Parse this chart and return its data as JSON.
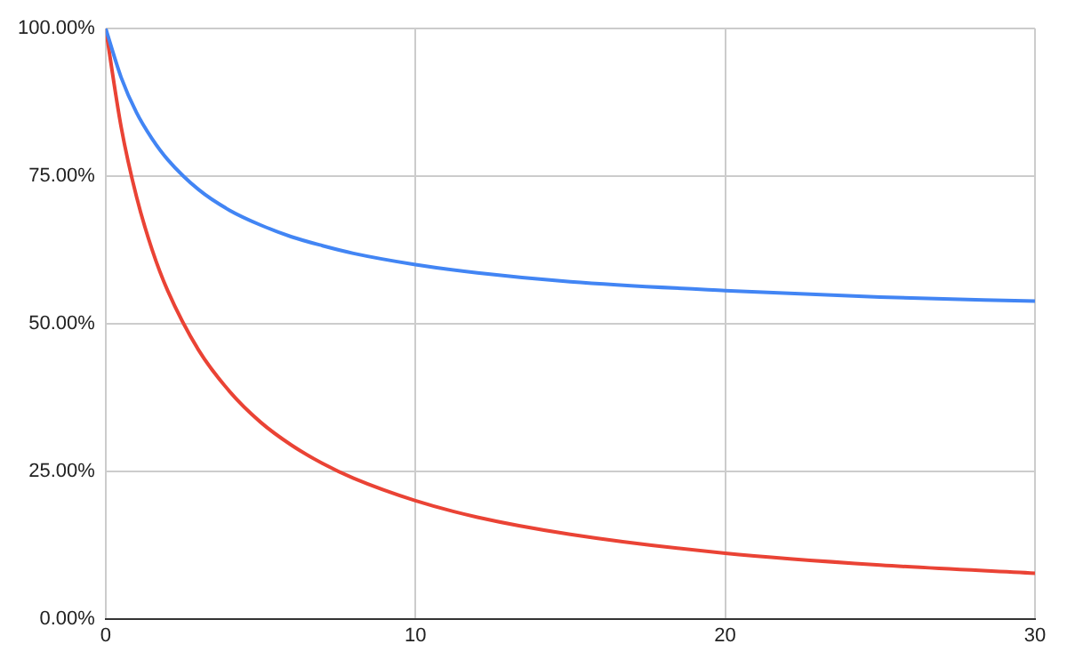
{
  "chart_data": {
    "type": "line",
    "x": [
      0,
      0.5,
      1,
      1.5,
      2,
      3,
      4,
      5,
      6,
      7,
      8,
      10,
      12,
      15,
      20,
      25,
      30
    ],
    "series": [
      {
        "color": "#4285f4",
        "values": [
          100,
          91.7,
          85.7,
          81.3,
          77.8,
          72.7,
          69.2,
          66.7,
          64.7,
          63.2,
          61.9,
          60,
          58.6,
          57.1,
          55.6,
          54.5,
          53.8
        ]
      },
      {
        "color": "#ea4335",
        "values": [
          100,
          83.3,
          71.4,
          62.5,
          55.6,
          45.5,
          38.5,
          33.3,
          29.4,
          26.3,
          23.8,
          20,
          17.2,
          14.3,
          11.1,
          9.1,
          7.7
        ]
      }
    ],
    "xlim": [
      0,
      30
    ],
    "xticks": [
      0,
      10,
      20,
      30
    ],
    "ylim": [
      0,
      100
    ],
    "yticks": [
      {
        "value": 0,
        "label": "0.00%"
      },
      {
        "value": 25,
        "label": "25.00%"
      },
      {
        "value": 50,
        "label": "50.00%"
      },
      {
        "value": 75,
        "label": "75.00%"
      },
      {
        "value": 100,
        "label": "100.00%"
      }
    ],
    "grid": true,
    "legend": false,
    "marker": "none",
    "line_style": "solid"
  }
}
